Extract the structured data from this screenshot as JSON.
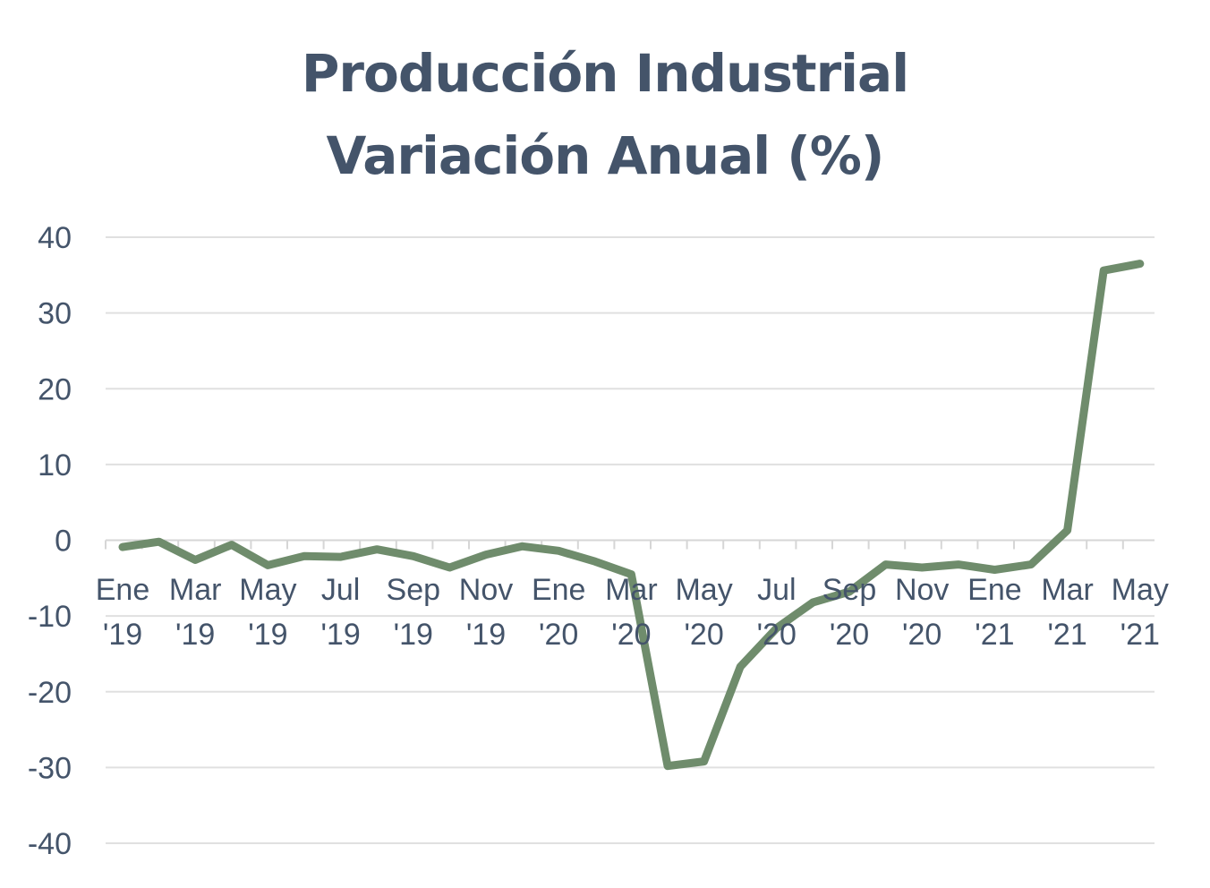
{
  "chart_data": {
    "type": "line",
    "title": "Producción Industrial",
    "subtitle": "Variación Anual (%)",
    "xlabel": "",
    "ylabel": "",
    "ylim": [
      -40,
      40
    ],
    "yticks": [
      40,
      30,
      20,
      10,
      0,
      -10,
      -20,
      -30,
      -40
    ],
    "grid": true,
    "legend": "none",
    "line_color": "#6f8c6c",
    "text_color": "#44546a",
    "x_tick_labels": [
      {
        "month": "Ene",
        "year": "'19"
      },
      {
        "month": "Mar",
        "year": "'19"
      },
      {
        "month": "May",
        "year": "'19"
      },
      {
        "month": "Jul",
        "year": "'19"
      },
      {
        "month": "Sep",
        "year": "'19"
      },
      {
        "month": "Nov",
        "year": "'19"
      },
      {
        "month": "Ene",
        "year": "'20"
      },
      {
        "month": "Mar",
        "year": "'20"
      },
      {
        "month": "May",
        "year": "'20"
      },
      {
        "month": "Jul",
        "year": "'20"
      },
      {
        "month": "Sep",
        "year": "'20"
      },
      {
        "month": "Nov",
        "year": "'20"
      },
      {
        "month": "Ene",
        "year": "'21"
      },
      {
        "month": "Mar",
        "year": "'21"
      },
      {
        "month": "May",
        "year": "'21"
      }
    ],
    "series": [
      {
        "name": "Producción Industrial",
        "values": [
          -0.9,
          -0.2,
          -2.6,
          -0.6,
          -3.3,
          -2.1,
          -2.2,
          -1.2,
          -2.1,
          -3.6,
          -1.9,
          -0.8,
          -1.4,
          -2.8,
          -4.5,
          -29.8,
          -29.2,
          -16.7,
          -11.6,
          -8.2,
          -6.8,
          -3.2,
          -3.6,
          -3.2,
          -3.9,
          -3.2,
          1.3,
          35.6,
          36.5
        ]
      }
    ]
  }
}
